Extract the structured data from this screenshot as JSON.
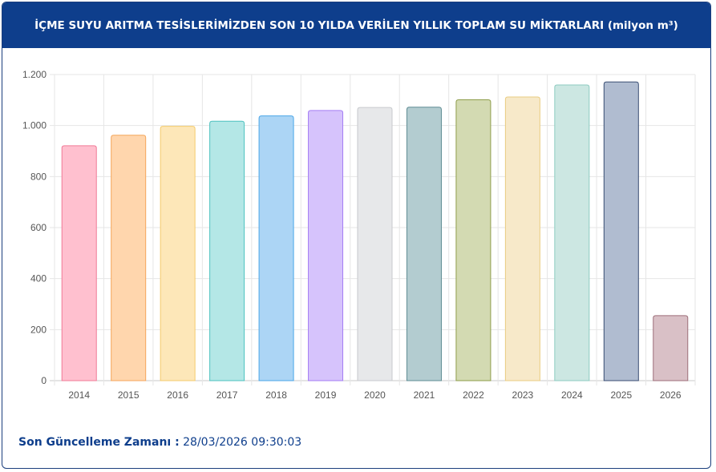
{
  "header": {
    "title": "İÇME SUYU ARITMA TESİSLERİMİZDEN SON 10 YILDA VERİLEN YILLIK TOPLAM SU MİKTARLARI (milyon m³)"
  },
  "footer": {
    "label": "Son Güncelleme Zamanı :",
    "value": "28/03/2026 09:30:03"
  },
  "colors": {
    "header_bg": "#0e3e8c",
    "accent_text": "#0e3e8c",
    "bar_fills": [
      "#ffc0cf",
      "#ffd6ad",
      "#fde7b8",
      "#b4e7e6",
      "#acd5f5",
      "#d6c3fc",
      "#e7e8ea",
      "#b3ccd0",
      "#d3dab2",
      "#f7e9c9",
      "#cce7e2",
      "#b0bcd0",
      "#d9c0c6"
    ],
    "bar_strokes": [
      "#f07a97",
      "#f4a55a",
      "#f4cb6c",
      "#4dc1bf",
      "#4aa6e8",
      "#a57ef4",
      "#c7c9cd",
      "#5f8c93",
      "#8e9d4a",
      "#e9cc82",
      "#8ccbc0",
      "#3a4e73",
      "#9d6e79"
    ]
  },
  "chart_data": {
    "type": "bar",
    "categories": [
      "2014",
      "2015",
      "2016",
      "2017",
      "2018",
      "2019",
      "2020",
      "2021",
      "2022",
      "2023",
      "2024",
      "2025",
      "2026"
    ],
    "values": [
      921,
      962,
      997,
      1017,
      1038,
      1059,
      1071,
      1072,
      1101,
      1112,
      1159,
      1171,
      255
    ],
    "ylim": [
      0,
      1200
    ],
    "yticks": [
      0,
      200,
      400,
      600,
      800,
      1000,
      1200
    ],
    "ytick_labels": [
      "0",
      "200",
      "400",
      "600",
      "800",
      "1.000",
      "1.200"
    ],
    "grid": true
  }
}
